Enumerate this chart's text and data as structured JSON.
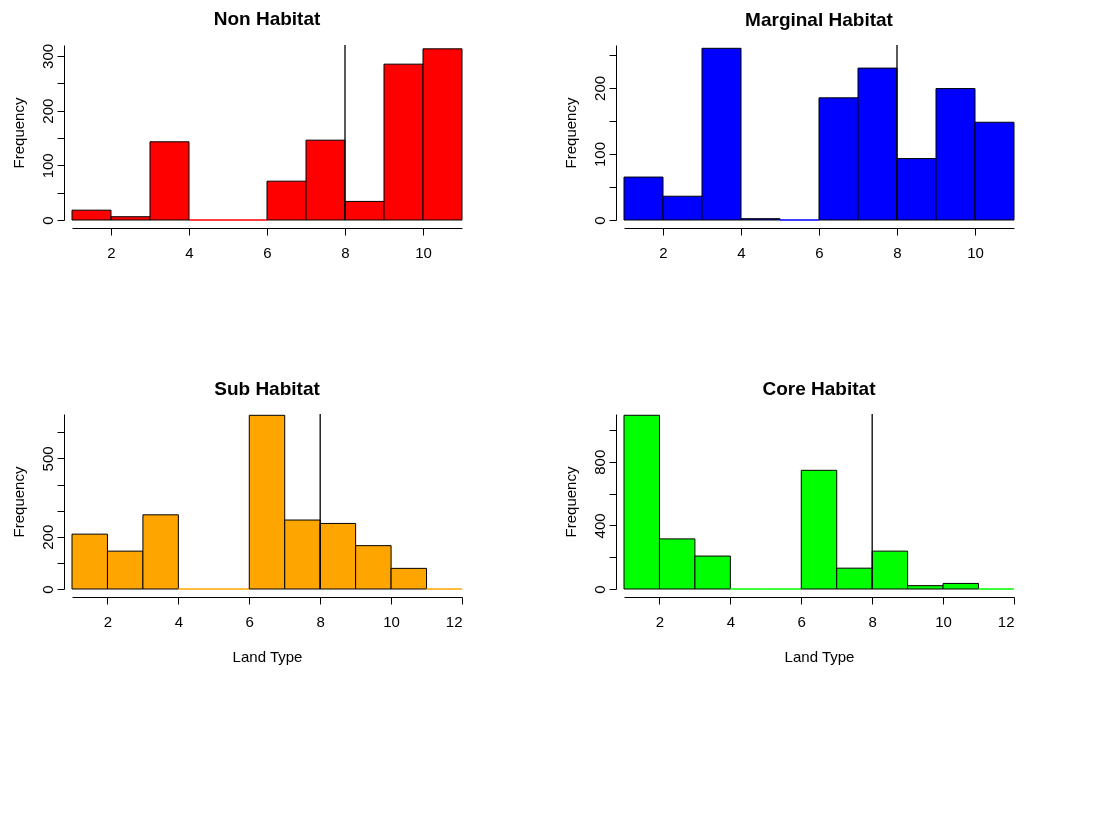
{
  "chart_data": [
    {
      "type": "histogram",
      "title": "Non Habitat",
      "ylabel": "Frequency",
      "bins": [
        1,
        2,
        3,
        4,
        5,
        6,
        7,
        8,
        9,
        10,
        11
      ],
      "values": [
        18,
        6,
        143,
        0,
        0,
        71,
        146,
        34,
        285,
        313
      ],
      "color": "#ff0000",
      "xlim": [
        1,
        11
      ],
      "xticks": [
        2,
        4,
        6,
        8,
        10
      ],
      "ylim": [
        0,
        320
      ],
      "yticks": [
        0,
        {
          "value": 50,
          "label": null
        },
        100,
        {
          "value": 150,
          "label": null
        },
        200,
        {
          "value": 250,
          "label": null
        },
        300
      ],
      "ref_lines": [
        {
          "axis": "x",
          "value": 8
        }
      ]
    },
    {
      "type": "histogram",
      "title": "Marginal Habitat",
      "ylabel": "Frequency",
      "bins": [
        1,
        2,
        3,
        4,
        5,
        6,
        7,
        8,
        9,
        10,
        11
      ],
      "values": [
        65,
        36,
        260,
        2,
        0,
        185,
        230,
        93,
        199,
        148
      ],
      "color": "#0000ff",
      "xlim": [
        1,
        11
      ],
      "xticks": [
        2,
        4,
        6,
        8,
        10
      ],
      "ylim": [
        0,
        265
      ],
      "yticks": [
        0,
        {
          "value": 50,
          "label": null
        },
        100,
        {
          "value": 150,
          "label": null
        },
        200,
        {
          "value": 250,
          "label": null
        }
      ],
      "ref_lines": [
        {
          "axis": "x",
          "value": 8
        }
      ]
    },
    {
      "type": "histogram",
      "title": "Sub Habitat",
      "xlabel": "Land Type",
      "ylabel": "Frequency",
      "bins": [
        1,
        2,
        3,
        4,
        5,
        6,
        7,
        8,
        9,
        10,
        11,
        12
      ],
      "values": [
        210,
        145,
        284,
        0,
        0,
        665,
        264,
        251,
        166,
        79,
        0
      ],
      "color": "#ffa500",
      "xlim": [
        1,
        12
      ],
      "xticks": [
        2,
        4,
        6,
        8,
        10,
        12
      ],
      "ylim": [
        0,
        670
      ],
      "yticks": [
        0,
        {
          "value": 100,
          "label": null
        },
        200,
        {
          "value": 300,
          "label": null
        },
        {
          "value": 400,
          "label": null
        },
        500,
        {
          "value": 600,
          "label": null
        }
      ],
      "ref_lines": [
        {
          "axis": "x",
          "value": 8
        }
      ]
    },
    {
      "type": "histogram",
      "title": "Core Habitat",
      "xlabel": "Land Type",
      "ylabel": "Frequency",
      "bins": [
        1,
        2,
        3,
        4,
        5,
        6,
        7,
        8,
        9,
        10,
        11,
        12
      ],
      "values": [
        1092,
        315,
        207,
        0,
        0,
        746,
        131,
        238,
        21,
        35,
        0
      ],
      "color": "#00ff00",
      "xlim": [
        1,
        12
      ],
      "xticks": [
        2,
        4,
        6,
        8,
        10,
        12
      ],
      "ylim": [
        0,
        1100
      ],
      "yticks": [
        0,
        {
          "value": 200,
          "label": null
        },
        400,
        {
          "value": 600,
          "label": null
        },
        800,
        {
          "value": 1000,
          "label": null
        }
      ],
      "ref_lines": [
        {
          "axis": "x",
          "value": 8
        }
      ]
    }
  ]
}
